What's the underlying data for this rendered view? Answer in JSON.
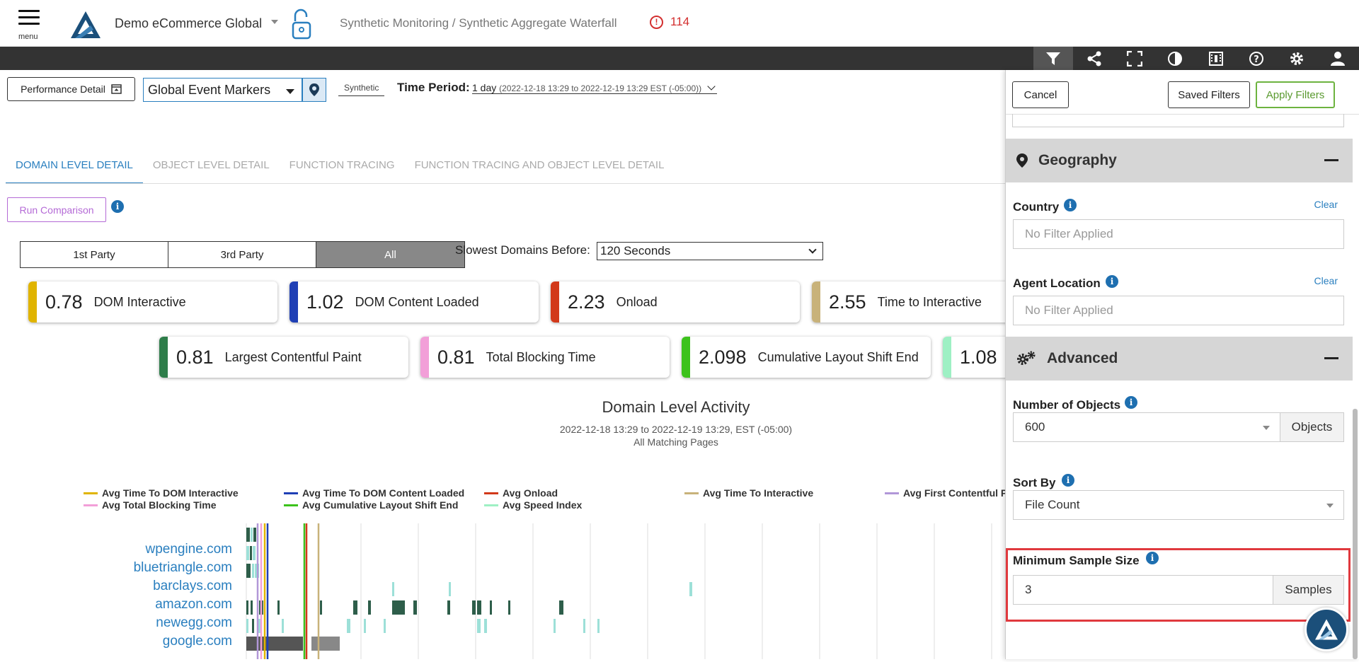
{
  "header": {
    "menu_label": "menu",
    "company": "Demo eCommerce Global",
    "breadcrumb": "Synthetic Monitoring / Synthetic Aggregate Waterfall",
    "alert_count": "114"
  },
  "toolbar": {
    "icons": [
      "filter-icon",
      "share-icon",
      "fullscreen-icon",
      "contrast-icon",
      "film-icon",
      "help-icon",
      "gear-icon",
      "user-icon"
    ]
  },
  "filterbar": {
    "performance_detail": "Performance Detail",
    "event_markers": "Global Event Markers",
    "synthetic_tab": "Synthetic",
    "time_period_label": "Time Period:",
    "time_period_value": "1 day",
    "time_period_range": "(2022-12-18 13:29 to 2022-12-19 13:29 EST (-05:00))"
  },
  "tabs": [
    "DOMAIN LEVEL DETAIL",
    "OBJECT LEVEL DETAIL",
    "FUNCTION TRACING",
    "FUNCTION TRACING AND OBJECT LEVEL DETAIL"
  ],
  "run_comparison": "Run Comparison",
  "party_filter": [
    "1st Party",
    "3rd Party",
    "All"
  ],
  "slowest": {
    "label": "Slowest Domains Before:",
    "value": "120 Seconds"
  },
  "metrics_row1": [
    {
      "value": "0.78",
      "label": "DOM Interactive",
      "color": "#e0b400"
    },
    {
      "value": "1.02",
      "label": "DOM Content Loaded",
      "color": "#1f3fb5"
    },
    {
      "value": "2.23",
      "label": "Onload",
      "color": "#d2391a"
    },
    {
      "value": "2.55",
      "label": "Time to Interactive",
      "color": "#c8b27a"
    }
  ],
  "metrics_row2": [
    {
      "value": "0.81",
      "label": "Largest Contentful Paint",
      "color": "#2e7d4a"
    },
    {
      "value": "0.81",
      "label": "Total Blocking Time",
      "color": "#f29fd8"
    },
    {
      "value": "2.098",
      "label": "Cumulative Layout Shift End",
      "color": "#3cc21c"
    },
    {
      "value": "1.08",
      "label": "",
      "color": "#9ef0c4"
    }
  ],
  "chart": {
    "title": "Domain Level Activity",
    "subtitle": "2022-12-18 13:29 to 2022-12-19 13:29, EST (-05:00)",
    "subtitle2": "All Matching Pages",
    "legend": [
      {
        "label": "Avg Time To DOM Interactive",
        "color": "#e0b400"
      },
      {
        "label": "Avg Time To DOM Content Loaded",
        "color": "#1f3fb5"
      },
      {
        "label": "Avg Onload",
        "color": "#d2391a"
      },
      {
        "label": "Avg Time To Interactive",
        "color": "#c8b27a"
      },
      {
        "label": "Avg First Contentful P",
        "color": "#b197d8"
      },
      {
        "label": "Avg Total Blocking Time",
        "color": "#f29fd8"
      },
      {
        "label": "Avg Cumulative Layout Shift End",
        "color": "#3cc21c"
      },
      {
        "label": "Avg Speed Index",
        "color": "#9ef0c4"
      }
    ],
    "domains": [
      "wpengine.com",
      "bluetriangle.com",
      "barclays.com",
      "amazon.com",
      "newegg.com",
      "google.com"
    ]
  },
  "panel": {
    "cancel": "Cancel",
    "saved_filters": "Saved Filters",
    "apply_filters": "Apply Filters",
    "geography": "Geography",
    "country_label": "Country",
    "country_clear": "Clear",
    "country_placeholder": "No Filter Applied",
    "agent_label": "Agent Location",
    "agent_clear": "Clear",
    "agent_placeholder": "No Filter Applied",
    "advanced": "Advanced",
    "objects_label": "Number of Objects",
    "objects_value": "600",
    "objects_addon": "Objects",
    "sort_label": "Sort By",
    "sort_value": "File Count",
    "sample_label": "Minimum Sample Size",
    "sample_value": "3",
    "sample_addon": "Samples"
  }
}
